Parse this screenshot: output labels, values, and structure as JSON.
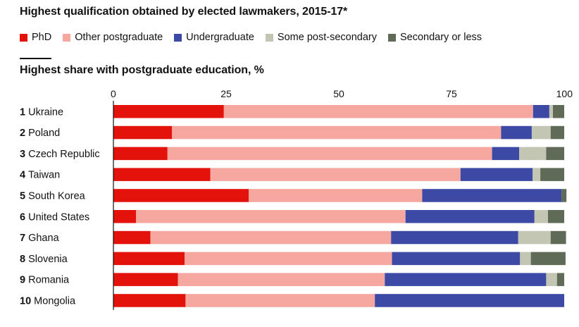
{
  "header": {
    "title": "Highest qualification obtained by elected lawmakers, 2015-17*",
    "subtitle": "Highest share with postgraduate education, %"
  },
  "chart_data": {
    "type": "bar",
    "orientation": "horizontal",
    "stacked": true,
    "title": "Highest qualification obtained by elected lawmakers, 2015-17*",
    "subtitle": "Highest share with postgraduate education, %",
    "xlim": [
      0,
      100
    ],
    "xticks": [
      0,
      25,
      50,
      75,
      100
    ],
    "legend_position": "top-left",
    "grid": false,
    "categories": [
      {
        "rank": "1",
        "name": "Ukraine"
      },
      {
        "rank": "2",
        "name": "Poland"
      },
      {
        "rank": "3",
        "name": "Czech Republic"
      },
      {
        "rank": "4",
        "name": "Taiwan"
      },
      {
        "rank": "5",
        "name": "South Korea"
      },
      {
        "rank": "6",
        "name": "United States"
      },
      {
        "rank": "7",
        "name": "Ghana"
      },
      {
        "rank": "8",
        "name": "Slovenia"
      },
      {
        "rank": "9",
        "name": "Romania"
      },
      {
        "rank": "10",
        "name": "Mongolia"
      }
    ],
    "series": [
      {
        "name": "PhD",
        "color": "#e3120b",
        "values": [
          24.5,
          13,
          12,
          21.5,
          30,
          5,
          8.2,
          15.8,
          14.3,
          16
        ]
      },
      {
        "name": "Other postgraduate",
        "color": "#f6a7a0",
        "values": [
          68.6,
          73,
          72,
          55.5,
          38.5,
          59.8,
          53.4,
          46,
          45.9,
          42
        ]
      },
      {
        "name": "Undergraduate",
        "color": "#3c4aa6",
        "values": [
          3.6,
          6.8,
          6,
          16,
          30.9,
          28.6,
          28.2,
          28.4,
          35.8,
          42
        ]
      },
      {
        "name": "Some post-secondary",
        "color": "#c2c6b2",
        "values": [
          0.8,
          4.2,
          6,
          1.7,
          0,
          3,
          7.2,
          2.4,
          2.4,
          0
        ]
      },
      {
        "name": "Secondary or less",
        "color": "#5f6a57",
        "values": [
          2.5,
          3,
          4,
          5.3,
          1.1,
          3.6,
          3.4,
          7.7,
          1.6,
          0
        ]
      }
    ]
  }
}
